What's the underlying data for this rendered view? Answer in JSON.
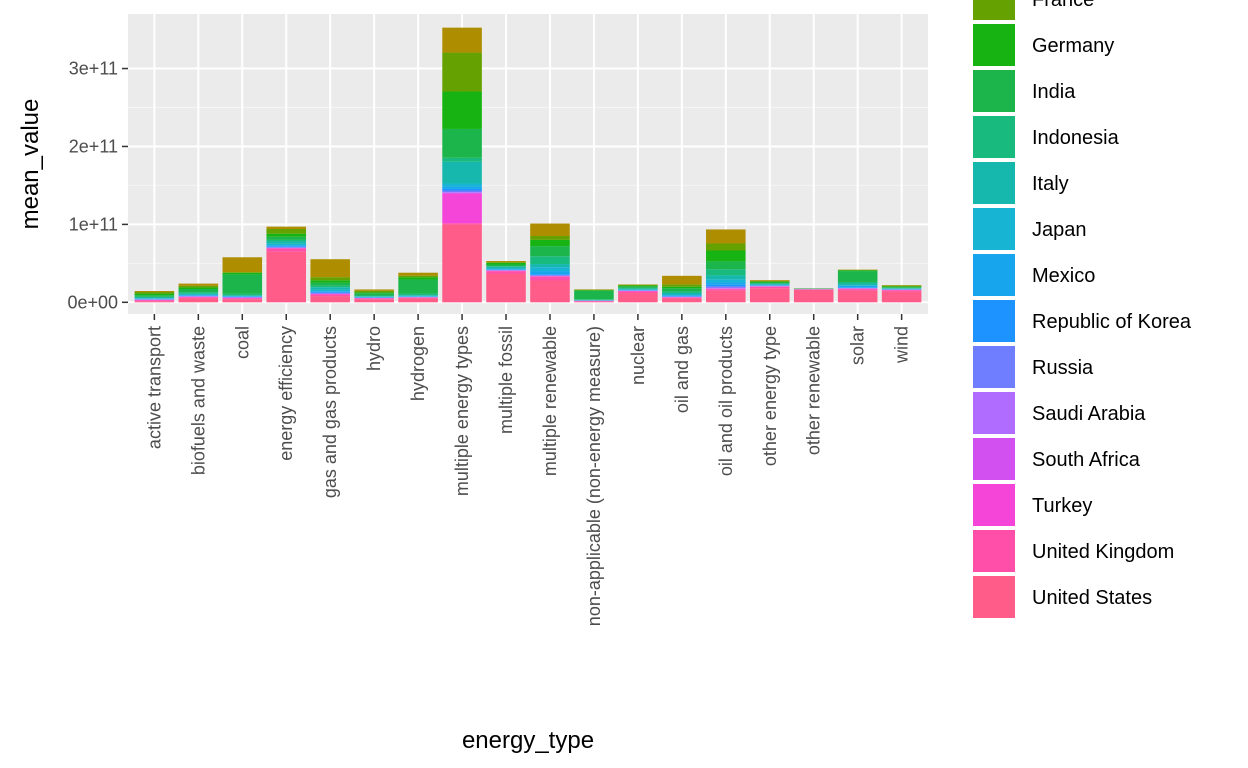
{
  "chart_data": {
    "type": "bar",
    "stacked": true,
    "xlabel": "energy_type",
    "ylabel": "mean_value",
    "ylim": [
      -15000000000.0,
      370000000000.0
    ],
    "grid": true,
    "legend_position": "right",
    "y_ticks": [
      {
        "value": 0,
        "label": "0e+00"
      },
      {
        "value": 100000000000,
        "label": "1e+11"
      },
      {
        "value": 200000000000,
        "label": "2e+11"
      },
      {
        "value": 300000000000,
        "label": "3e+11"
      }
    ],
    "categories": [
      "active transport",
      "biofuels and waste",
      "coal",
      "energy efficiency",
      "gas and gas products",
      "hydro",
      "hydrogen",
      "multiple energy types",
      "multiple fossil",
      "multiple renewable",
      "non-applicable (non-energy measure)",
      "nuclear",
      "oil and gas",
      "oil and oil products",
      "other energy type",
      "other renewable",
      "solar",
      "wind"
    ],
    "series": [
      {
        "name": "United States",
        "color": "#FF5C8A",
        "values": [
          1500000000.0,
          5000000000.0,
          4000000000.0,
          65000000000.0,
          8000000000.0,
          4000000000.0,
          5000000000.0,
          100000000000.0,
          37000000000.0,
          28000000000.0,
          1000000000.0,
          12000000000.0,
          5000000000.0,
          15000000000.0,
          18000000000.0,
          16000000000.0,
          15000000000.0,
          14000000000.0
        ]
      },
      {
        "name": "United Kingdom",
        "color": "#FF4FA8",
        "values": [
          1000000000.0,
          1500000000.0,
          1000000000.0,
          4000000000.0,
          2000000000.0,
          1000000000.0,
          1000000000.0,
          1500000000.0,
          3000000000.0,
          5000000000.0,
          500000000.0,
          2000000000.0,
          1000000000.0,
          2000000000.0,
          2000000000.0,
          500000000.0,
          2000000000.0,
          1500000000.0
        ]
      },
      {
        "name": "Turkey",
        "color": "#F545D9",
        "values": [
          500000000.0,
          500000000.0,
          500000000.0,
          500000000.0,
          500000000.0,
          200000000.0,
          200000000.0,
          38000000000.0,
          500000000.0,
          500000000.0,
          200000000.0,
          500000000.0,
          500000000.0,
          500000000.0,
          500000000.0,
          200000000.0,
          500000000.0,
          300000000.0
        ]
      },
      {
        "name": "South Africa",
        "color": "#D350F0",
        "values": [
          200000000.0,
          300000000.0,
          500000000.0,
          300000000.0,
          300000000.0,
          200000000.0,
          200000000.0,
          1000000000.0,
          200000000.0,
          300000000.0,
          100000000.0,
          200000000.0,
          200000000.0,
          500000000.0,
          200000000.0,
          100000000.0,
          300000000.0,
          200000000.0
        ]
      },
      {
        "name": "Saudi Arabia",
        "color": "#B06BFF",
        "values": [
          200000000.0,
          300000000.0,
          300000000.0,
          300000000.0,
          500000000.0,
          200000000.0,
          200000000.0,
          1000000000.0,
          300000000.0,
          300000000.0,
          100000000.0,
          200000000.0,
          300000000.0,
          1000000000.0,
          200000000.0,
          100000000.0,
          300000000.0,
          200000000.0
        ]
      },
      {
        "name": "Russia",
        "color": "#6F7EFF",
        "values": [
          500000000.0,
          500000000.0,
          500000000.0,
          1000000000.0,
          1000000000.0,
          300000000.0,
          300000000.0,
          2000000000.0,
          500000000.0,
          1000000000.0,
          200000000.0,
          300000000.0,
          500000000.0,
          1500000000.0,
          300000000.0,
          100000000.0,
          500000000.0,
          200000000.0
        ]
      },
      {
        "name": "Republic of Korea",
        "color": "#1C93FF",
        "values": [
          300000000.0,
          500000000.0,
          500000000.0,
          1000000000.0,
          1000000000.0,
          300000000.0,
          300000000.0,
          2000000000.0,
          500000000.0,
          1000000000.0,
          200000000.0,
          300000000.0,
          500000000.0,
          2000000000.0,
          300000000.0,
          100000000.0,
          500000000.0,
          300000000.0
        ]
      },
      {
        "name": "Mexico",
        "color": "#17A6EE",
        "values": [
          500000000.0,
          500000000.0,
          500000000.0,
          1000000000.0,
          1000000000.0,
          500000000.0,
          500000000.0,
          3000000000.0,
          500000000.0,
          4000000000.0,
          200000000.0,
          500000000.0,
          1000000000.0,
          3000000000.0,
          500000000.0,
          100000000.0,
          2000000000.0,
          300000000.0
        ]
      },
      {
        "name": "Japan",
        "color": "#17B4D3",
        "values": [
          500000000.0,
          1000000000.0,
          500000000.0,
          2000000000.0,
          2000000000.0,
          500000000.0,
          500000000.0,
          4000000000.0,
          1000000000.0,
          5000000000.0,
          200000000.0,
          500000000.0,
          1000000000.0,
          4000000000.0,
          500000000.0,
          100000000.0,
          1000000000.0,
          500000000.0
        ]
      },
      {
        "name": "Italy",
        "color": "#16B8AE",
        "values": [
          1000000000.0,
          1000000000.0,
          500000000.0,
          3000000000.0,
          3000000000.0,
          500000000.0,
          1000000000.0,
          28000000000.0,
          2000000000.0,
          4000000000.0,
          500000000.0,
          1000000000.0,
          2000000000.0,
          5000000000.0,
          1000000000.0,
          100000000.0,
          2000000000.0,
          500000000.0
        ]
      },
      {
        "name": "Indonesia",
        "color": "#18BA7E",
        "values": [
          1000000000.0,
          2000000000.0,
          2000000000.0,
          2000000000.0,
          2000000000.0,
          1000000000.0,
          2000000000.0,
          5000000000.0,
          1000000000.0,
          10000000000.0,
          500000000.0,
          1000000000.0,
          2000000000.0,
          8000000000.0,
          1000000000.0,
          100000000.0,
          2000000000.0,
          500000000.0
        ]
      },
      {
        "name": "India",
        "color": "#1BB54C",
        "values": [
          2000000000.0,
          4000000000.0,
          25000000000.0,
          4000000000.0,
          4000000000.0,
          3000000000.0,
          18000000000.0,
          37000000000.0,
          2000000000.0,
          13000000000.0,
          11000000000.0,
          2000000000.0,
          4000000000.0,
          10000000000.0,
          1000000000.0,
          200000000.0,
          14000000000.0,
          1000000000.0
        ]
      },
      {
        "name": "Germany",
        "color": "#17B312",
        "values": [
          2000000000.0,
          2000000000.0,
          2000000000.0,
          4000000000.0,
          3000000000.0,
          1000000000.0,
          3000000000.0,
          48000000000.0,
          2000000000.0,
          8000000000.0,
          1000000000.0,
          1000000000.0,
          2000000000.0,
          14000000000.0,
          1000000000.0,
          100000000.0,
          1000000000.0,
          1000000000.0
        ]
      },
      {
        "name": "France",
        "color": "#65A100",
        "values": [
          2000000000.0,
          2000000000.0,
          1000000000.0,
          6000000000.0,
          4000000000.0,
          2000000000.0,
          2000000000.0,
          50000000000.0,
          1000000000.0,
          5000000000.0,
          500000000.0,
          1000000000.0,
          3000000000.0,
          9000000000.0,
          1000000000.0,
          100000000.0,
          500000000.0,
          1000000000.0
        ]
      },
      {
        "name": "",
        "color": "#AE8E00",
        "values": [
          1300000000.0,
          2900000000.0,
          19000000000.0,
          3000000000.0,
          23000000000.0,
          1800000000.0,
          3800000000.0,
          32000000000.0,
          1500000000.0,
          16000000000.0,
          500000000.0,
          500000000.0,
          11000000000.0,
          18000000000.0,
          1000000000.0,
          200000000.0,
          400000000.0,
          500000000.0
        ]
      }
    ]
  },
  "legend": {
    "items": [
      {
        "label": "France",
        "color": "#65A100"
      },
      {
        "label": "Germany",
        "color": "#17B312"
      },
      {
        "label": "India",
        "color": "#1BB54C"
      },
      {
        "label": "Indonesia",
        "color": "#18BA7E"
      },
      {
        "label": "Italy",
        "color": "#16B8AE"
      },
      {
        "label": "Japan",
        "color": "#17B4D3"
      },
      {
        "label": "Mexico",
        "color": "#17A6EE"
      },
      {
        "label": "Republic of Korea",
        "color": "#1C93FF"
      },
      {
        "label": "Russia",
        "color": "#6F7EFF"
      },
      {
        "label": "Saudi Arabia",
        "color": "#B06BFF"
      },
      {
        "label": "South Africa",
        "color": "#D350F0"
      },
      {
        "label": "Turkey",
        "color": "#F545D9"
      },
      {
        "label": "United Kingdom",
        "color": "#FF4FA8"
      },
      {
        "label": "United States",
        "color": "#FF5C8A"
      }
    ]
  },
  "colors": {
    "panel_bg": "#EBEBEB",
    "grid_major": "#FFFFFF",
    "tick_text": "#4D4D4D",
    "tick_mark": "#333333"
  }
}
